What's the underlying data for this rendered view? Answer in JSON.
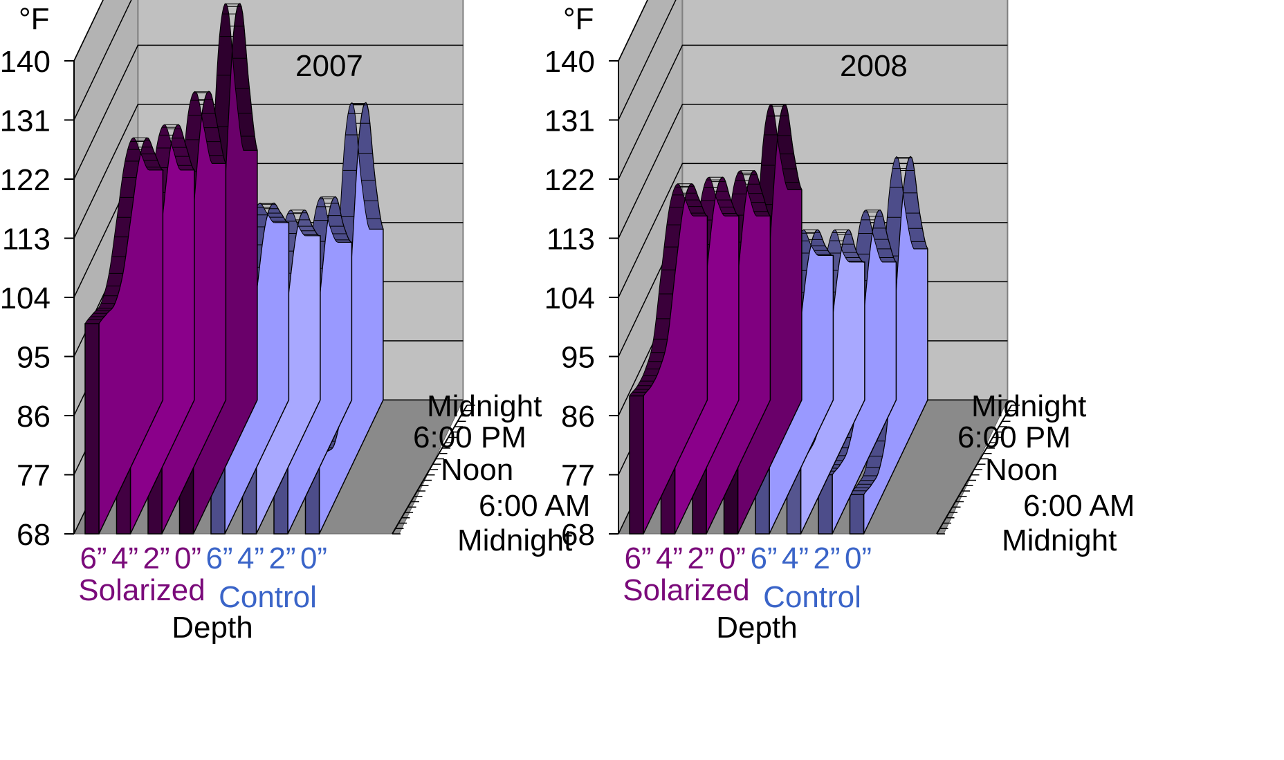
{
  "colors": {
    "background": "#ffffff",
    "wall_back": "#c0c0c0",
    "wall_side": "#b3b3b3",
    "floor": "#8a8a8a",
    "grid": "#000000",
    "solarized_label": "#7a0a7a",
    "control_label": "#3a64c8",
    "text": "#000000",
    "solarized_front": [
      "#800080",
      "#8a008a",
      "#800080",
      "#6a006a"
    ],
    "solarized_dark": [
      "#3a003a",
      "#420042",
      "#3a003a",
      "#2e002e"
    ],
    "control_front": [
      "#9999ff",
      "#a8a8ff",
      "#9999ff",
      "#9999ff"
    ],
    "control_dark": [
      "#4d4d8a",
      "#55558f",
      "#4d4d8a",
      "#4d4d8a"
    ]
  },
  "chart_data": [
    {
      "type": "area",
      "title": "2007",
      "unit_label": "°F",
      "ylim": [
        68,
        140
      ],
      "y_ticks": [
        "140",
        "131",
        "122",
        "113",
        "104",
        "95",
        "86",
        "77",
        "68"
      ],
      "x_label": "Depth",
      "depth_ticks": [
        "6”",
        "4”",
        "2”",
        "0”",
        "6”",
        "4”",
        "2”",
        "0”"
      ],
      "groups": [
        "Solarized",
        "Control"
      ],
      "time_ticks": [
        "Midnight",
        "6:00 AM",
        "Noon",
        "6:00 PM",
        "Midnight"
      ],
      "time_hours": [
        0,
        3,
        6,
        9,
        12,
        15,
        18,
        21,
        24
      ],
      "series": [
        {
          "group": "Solarized",
          "depth": "6”",
          "values": [
            100,
            99,
            98,
            100,
            106,
            112,
            113,
            108,
            103
          ]
        },
        {
          "group": "Solarized",
          "depth": "4”",
          "values": [
            98,
            96,
            95,
            98,
            106,
            114,
            115,
            109,
            103
          ]
        },
        {
          "group": "Solarized",
          "depth": "2”",
          "values": [
            95,
            93,
            92,
            96,
            108,
            119,
            120,
            112,
            104
          ]
        },
        {
          "group": "Solarized",
          "depth": "0”",
          "values": [
            91,
            88,
            87,
            93,
            112,
            131,
            133,
            118,
            106
          ]
        },
        {
          "group": "Control",
          "depth": "6”",
          "values": [
            88,
            87,
            86,
            88,
            95,
            102,
            103,
            99,
            95
          ]
        },
        {
          "group": "Control",
          "depth": "4”",
          "values": [
            86,
            84,
            83,
            86,
            94,
            101,
            102,
            97,
            93
          ]
        },
        {
          "group": "Control",
          "depth": "2”",
          "values": [
            84,
            82,
            81,
            84,
            94,
            103,
            104,
            97,
            92
          ]
        },
        {
          "group": "Control",
          "depth": "0”",
          "values": [
            80,
            78,
            77,
            82,
            99,
            116,
            118,
            104,
            94
          ]
        }
      ]
    },
    {
      "type": "area",
      "title": "2008",
      "unit_label": "°F",
      "ylim": [
        68,
        140
      ],
      "y_ticks": [
        "140",
        "131",
        "122",
        "113",
        "104",
        "95",
        "86",
        "77",
        "68"
      ],
      "x_label": "Depth",
      "depth_ticks": [
        "6”",
        "4”",
        "2”",
        "0”",
        "6”",
        "4”",
        "2”",
        "0”"
      ],
      "groups": [
        "Solarized",
        "Control"
      ],
      "time_ticks": [
        "Midnight",
        "6:00 AM",
        "Noon",
        "6:00 PM",
        "Midnight"
      ],
      "time_hours": [
        0,
        3,
        6,
        9,
        12,
        15,
        18,
        21,
        24
      ],
      "series": [
        {
          "group": "Solarized",
          "depth": "6”",
          "values": [
            89,
            88,
            88,
            90,
            98,
            105,
            106,
            101,
            96
          ]
        },
        {
          "group": "Solarized",
          "depth": "4”",
          "values": [
            88,
            87,
            87,
            89,
            98,
            106,
            107,
            101,
            96
          ]
        },
        {
          "group": "Solarized",
          "depth": "2”",
          "values": [
            86,
            85,
            85,
            88,
            98,
            107,
            108,
            102,
            96
          ]
        },
        {
          "group": "Solarized",
          "depth": "0”",
          "values": [
            85,
            84,
            84,
            88,
            102,
            116,
            118,
            108,
            100
          ]
        },
        {
          "group": "Control",
          "depth": "6”",
          "values": [
            80,
            79,
            79,
            82,
            91,
            98,
            99,
            94,
            90
          ]
        },
        {
          "group": "Control",
          "depth": "4”",
          "values": [
            79,
            78,
            78,
            81,
            91,
            98,
            99,
            93,
            89
          ]
        },
        {
          "group": "Control",
          "depth": "2”",
          "values": [
            77,
            76,
            76,
            80,
            92,
            101,
            102,
            95,
            89
          ]
        },
        {
          "group": "Control",
          "depth": "0”",
          "values": [
            74,
            73,
            73,
            78,
            94,
            108,
            110,
            99,
            91
          ]
        }
      ]
    }
  ]
}
